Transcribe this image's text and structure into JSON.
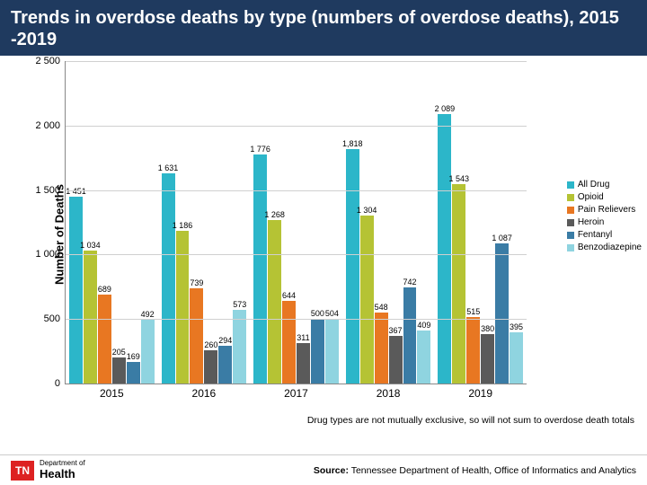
{
  "title": "Trends in overdose deaths by type (numbers of overdose deaths), 2015 -2019",
  "chart": {
    "type": "bar",
    "ylabel": "Number of Deaths",
    "ylim": [
      0,
      2500
    ],
    "ytick_step": 500,
    "yticks": [
      "0",
      "500",
      "1 000",
      "1 500",
      "2 000",
      "2 500"
    ],
    "categories": [
      "2015",
      "2016",
      "2017",
      "2018",
      "2019"
    ],
    "series": [
      {
        "name": "All Drug",
        "color": "#2cb6c9"
      },
      {
        "name": "Opioid",
        "color": "#b5c334"
      },
      {
        "name": "Pain Relievers",
        "color": "#e87722"
      },
      {
        "name": "Heroin",
        "color": "#5a5a5a"
      },
      {
        "name": "Fentanyl",
        "color": "#3a7ca5"
      },
      {
        "name": "Benzodiazepine",
        "color": "#8fd4e0"
      }
    ],
    "data": [
      {
        "labels": [
          "1 451",
          "1 034",
          "689",
          "205",
          "169",
          "492"
        ],
        "values": [
          1451,
          1034,
          689,
          205,
          169,
          492
        ]
      },
      {
        "labels": [
          "1 631",
          "1 186",
          "739",
          "260",
          "294",
          "573"
        ],
        "values": [
          1631,
          1186,
          739,
          260,
          294,
          573
        ]
      },
      {
        "labels": [
          "1 776",
          "1 268",
          "644",
          "311",
          "500",
          "504"
        ],
        "values": [
          1776,
          1268,
          644,
          311,
          500,
          504
        ]
      },
      {
        "labels": [
          "1,818",
          "1 304",
          "548",
          "367",
          "742",
          "409"
        ],
        "values": [
          1818,
          1304,
          548,
          367,
          742,
          409
        ]
      },
      {
        "labels": [
          "2 089",
          "1 543",
          "515",
          "380",
          "1 087",
          "395"
        ],
        "values": [
          2089,
          1543,
          515,
          380,
          1087,
          395
        ]
      }
    ],
    "background_color": "#ffffff",
    "grid_color": "#d0d0d0"
  },
  "note": "Drug types are not mutually exclusive, so will not sum to overdose death totals",
  "footer": {
    "logo_state": "TN",
    "logo_dept_line1": "Department of",
    "logo_dept_line2": "Health",
    "source_label": "Source:",
    "source_text": "Tennessee Department of Health, Office of Informatics and Analytics"
  }
}
